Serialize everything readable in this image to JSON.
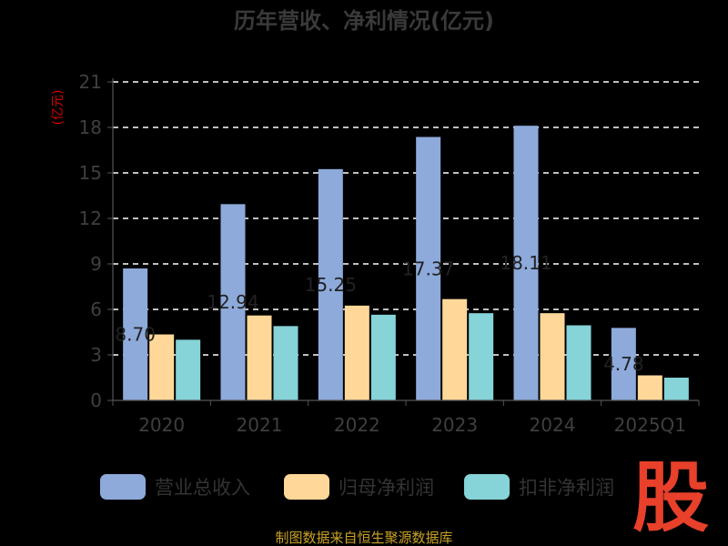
{
  "chart_data": {
    "type": "bar",
    "title": "历年营收、净利情况(亿元)",
    "ylabel": "(亿元)",
    "xlabel": "",
    "ylim": [
      0,
      21
    ],
    "yticks": [
      0,
      3,
      6,
      9,
      12,
      15,
      18,
      21
    ],
    "grid": true,
    "legend_position": "bottom",
    "categories": [
      "2020",
      "2021",
      "2022",
      "2023",
      "2024",
      "2025Q1"
    ],
    "series": [
      {
        "name": "营业总收入",
        "color": "#8eaadb",
        "values": [
          8.7,
          12.94,
          15.25,
          17.37,
          18.11,
          4.78
        ]
      },
      {
        "name": "归母净利润",
        "color": "#ffd899",
        "values": [
          4.35,
          5.6,
          6.25,
          6.68,
          5.75,
          1.65
        ]
      },
      {
        "name": "扣非净利润",
        "color": "#86d3d8",
        "values": [
          4.0,
          4.9,
          5.65,
          5.75,
          4.95,
          1.5
        ]
      }
    ],
    "data_labels": [
      "8.70",
      "12.94",
      "15.25",
      "17.37",
      "18.11",
      "4.78"
    ]
  },
  "source": "制图数据来自恒生聚源数据库",
  "logo": "股"
}
